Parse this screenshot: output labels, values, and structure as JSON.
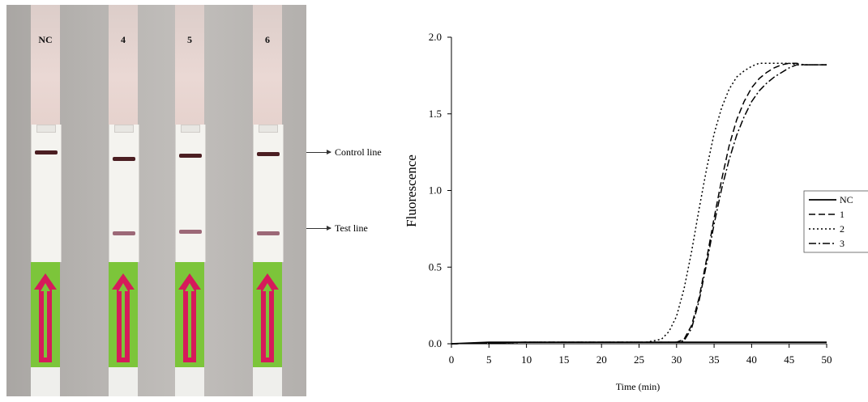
{
  "photo": {
    "strips": [
      {
        "label": "NC",
        "control": true,
        "test": false
      },
      {
        "label": "4",
        "control": true,
        "test": true
      },
      {
        "label": "5",
        "control": true,
        "test": true
      },
      {
        "label": "6",
        "control": true,
        "test": true
      }
    ],
    "annotations": {
      "control": "Control line",
      "test": "Test line"
    }
  },
  "chart_data": {
    "type": "line",
    "xlabel": "Time (min)",
    "ylabel": "Fluorescence",
    "xlim": [
      0,
      50
    ],
    "ylim": [
      0,
      2.0
    ],
    "xticks": [
      0,
      5,
      10,
      15,
      20,
      25,
      30,
      35,
      40,
      45,
      50
    ],
    "yticks": [
      "0.0",
      "0.5",
      "1.0",
      "1.5",
      "2.0"
    ],
    "legend_position": "right",
    "series": [
      {
        "name": "NC",
        "style": "solid",
        "x": [
          0,
          5,
          10,
          20,
          30,
          40,
          50
        ],
        "y": [
          0.0,
          0.01,
          0.01,
          0.01,
          0.01,
          0.01,
          0.01
        ]
      },
      {
        "name": "1",
        "style": "dashed",
        "x": [
          0,
          10,
          20,
          28,
          30,
          31,
          32,
          33,
          34,
          35,
          36,
          37,
          38,
          39,
          40,
          41,
          42,
          43,
          44,
          45,
          46,
          47,
          48,
          49,
          50
        ],
        "y": [
          0.0,
          0.01,
          0.01,
          0.01,
          0.01,
          0.03,
          0.12,
          0.3,
          0.55,
          0.82,
          1.07,
          1.29,
          1.46,
          1.58,
          1.67,
          1.73,
          1.77,
          1.8,
          1.82,
          1.83,
          1.83,
          1.82,
          1.82,
          1.82,
          1.82
        ]
      },
      {
        "name": "2",
        "style": "dotted",
        "x": [
          0,
          10,
          20,
          26,
          28,
          29,
          30,
          31,
          32,
          33,
          34,
          35,
          36,
          37,
          38,
          39,
          40,
          41,
          42,
          43,
          44,
          45,
          46,
          48,
          50
        ],
        "y": [
          0.0,
          0.01,
          0.01,
          0.01,
          0.03,
          0.08,
          0.18,
          0.36,
          0.6,
          0.88,
          1.14,
          1.37,
          1.54,
          1.66,
          1.74,
          1.78,
          1.81,
          1.83,
          1.83,
          1.83,
          1.83,
          1.83,
          1.82,
          1.82,
          1.82
        ]
      },
      {
        "name": "3",
        "style": "dashdot",
        "x": [
          0,
          10,
          20,
          28,
          30,
          31,
          32,
          33,
          34,
          35,
          36,
          37,
          38,
          39,
          40,
          41,
          42,
          43,
          44,
          45,
          46,
          47,
          48,
          50
        ],
        "y": [
          0.0,
          0.01,
          0.01,
          0.01,
          0.01,
          0.02,
          0.1,
          0.28,
          0.52,
          0.78,
          1.01,
          1.2,
          1.36,
          1.48,
          1.58,
          1.65,
          1.7,
          1.74,
          1.77,
          1.8,
          1.82,
          1.82,
          1.82,
          1.82
        ]
      }
    ]
  }
}
